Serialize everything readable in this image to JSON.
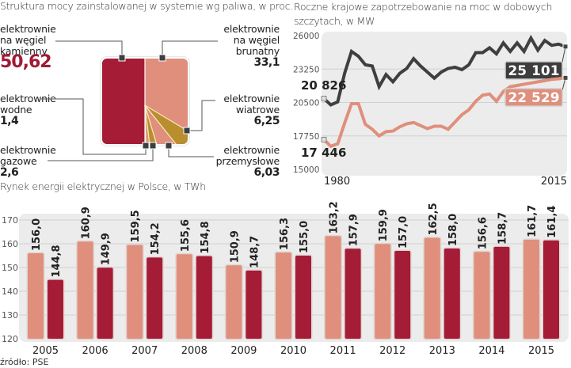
{
  "colors": {
    "dark_red": "#a51c36",
    "salmon": "#df8f7c",
    "olive": "#b88e2e",
    "dark_line": "#3f3f3f",
    "plot_bg": "#ececec",
    "grid": "#d0d0d0"
  },
  "source": "źródło: PSE",
  "chart_data": [
    {
      "type": "pie",
      "title": "Struktura mocy zainstalowanej w systemie wg paliwa, w proc.",
      "slices": [
        {
          "label": "elektrownie na węgiel kamienny",
          "value": 50.62,
          "value_label": "50,62",
          "color": "#a51c36"
        },
        {
          "label": "elektrownie na węgiel brunatny",
          "value": 33.1,
          "value_label": "33,1",
          "color": "#df8f7c"
        },
        {
          "label": "elektrownie wiatrowe",
          "value": 6.25,
          "value_label": "6,25",
          "color": "#b88e2e"
        },
        {
          "label": "elektrownie przemysłowe",
          "value": 6.03,
          "value_label": "6,03",
          "color": "#df8f7c"
        },
        {
          "label": "elektrownie gazowe",
          "value": 2.6,
          "value_label": "2,6",
          "color": "#b88e2e"
        },
        {
          "label": "elektrownie wodne",
          "value": 1.4,
          "value_label": "1,4",
          "color": "#df8f7c"
        }
      ],
      "labels_text": {
        "kamienny": [
          "elektrownie",
          "na węgiel",
          "kamienny"
        ],
        "brunatny": [
          "elektrownie",
          "na węgiel",
          "brunatny"
        ],
        "wodne": [
          "elektrownie",
          "wodne"
        ],
        "gazowe": [
          "elektrownie",
          "gazowe"
        ],
        "wiatrowe": [
          "elektrownie",
          "wiatrowe"
        ],
        "przemyslowe": [
          "elektrownie",
          "przemysłowe"
        ]
      }
    },
    {
      "type": "line",
      "title_lines": [
        "Roczne krajowe zapotrzebowanie na moc w dobowych",
        "szczytach, w MW"
      ],
      "ylim": [
        15000,
        26000
      ],
      "yticks": [
        15000,
        17750,
        20500,
        23250,
        26000
      ],
      "ytick_labels": [
        "15000",
        "17750",
        "20500",
        "23250",
        "26000"
      ],
      "xlim": [
        1980,
        2015
      ],
      "xtick_labels": [
        "1980",
        "2015"
      ],
      "grid": true,
      "series": [
        {
          "name": "series-dark",
          "color": "#3f3f3f",
          "start_label": "20 826",
          "end_label": "25 101",
          "values": [
            20826,
            20300,
            20550,
            22900,
            24700,
            24300,
            23600,
            23500,
            21800,
            22800,
            22200,
            22900,
            23300,
            24100,
            23500,
            23000,
            22500,
            23000,
            23300,
            23400,
            23200,
            23600,
            24600,
            24600,
            25000,
            24500,
            25400,
            24700,
            25400,
            24700,
            25800,
            24800,
            25600,
            25200,
            25300,
            25101
          ]
        },
        {
          "name": "series-salmon",
          "color": "#df8f7c",
          "start_label": "17 446",
          "end_label": "22 529",
          "values": [
            17446,
            16900,
            17100,
            18800,
            20400,
            20400,
            18700,
            18300,
            17750,
            18100,
            18150,
            18500,
            18750,
            18850,
            18600,
            18350,
            18550,
            18550,
            18300,
            18900,
            19500,
            19900,
            20600,
            21100,
            21200,
            20600,
            21400,
            21800,
            21900,
            22000,
            22100,
            22200,
            22300,
            22400,
            22450,
            22529
          ]
        }
      ]
    },
    {
      "type": "bar",
      "title": "Rynek energii elektrycznej w Polsce, w TWh",
      "ylim": [
        120,
        170
      ],
      "yticks": [
        120,
        130,
        140,
        150,
        160,
        170
      ],
      "ytick_labels": [
        "120",
        "130",
        "140",
        "150",
        "160",
        "170"
      ],
      "grid": true,
      "categories": [
        "2005",
        "2006",
        "2007",
        "2008",
        "2009",
        "2010",
        "2011",
        "2012",
        "2013",
        "2014",
        "2015"
      ],
      "series": [
        {
          "name": "series-salmon",
          "color": "#df8f7c",
          "values": [
            156.0,
            160.9,
            159.5,
            155.6,
            150.9,
            156.3,
            163.2,
            159.9,
            162.5,
            156.6,
            161.7
          ],
          "value_labels": [
            "156,0",
            "160,9",
            "159,5",
            "155,6",
            "150,9",
            "156,3",
            "163,2",
            "159,9",
            "162,5",
            "156,6",
            "161,7"
          ]
        },
        {
          "name": "series-dark-red",
          "color": "#a51c36",
          "values": [
            144.8,
            149.9,
            154.2,
            154.8,
            148.7,
            155.0,
            157.9,
            157.0,
            158.0,
            158.7,
            161.4
          ],
          "value_labels": [
            "144,8",
            "149,9",
            "154,2",
            "154,8",
            "148,7",
            "155,0",
            "157,9",
            "157,0",
            "158,0",
            "158,7",
            "161,4"
          ]
        }
      ]
    }
  ]
}
